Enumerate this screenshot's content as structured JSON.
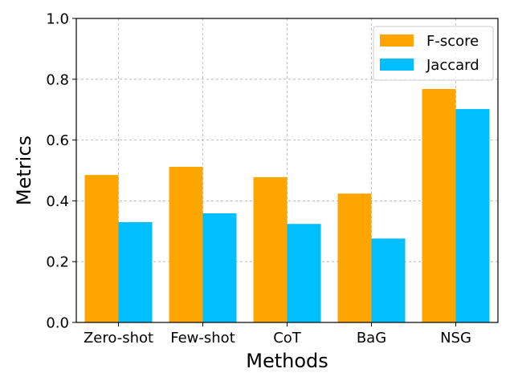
{
  "chart_data": {
    "type": "bar",
    "title": "",
    "xlabel": "Methods",
    "ylabel": "Metrics",
    "categories": [
      "Zero-shot",
      "Few-shot",
      "CoT",
      "BaG",
      "NSG"
    ],
    "series": [
      {
        "name": "F-score",
        "color": "#FFA500",
        "values": [
          0.485,
          0.512,
          0.478,
          0.424,
          0.768
        ]
      },
      {
        "name": "Jaccard",
        "color": "#00BFFF",
        "values": [
          0.33,
          0.359,
          0.324,
          0.276,
          0.702
        ]
      }
    ],
    "ylim": [
      0.0,
      1.0
    ],
    "yticks": [
      "0.0",
      "0.2",
      "0.4",
      "0.6",
      "0.8",
      "1.0"
    ],
    "grid": true,
    "legend_position": "top-right"
  }
}
